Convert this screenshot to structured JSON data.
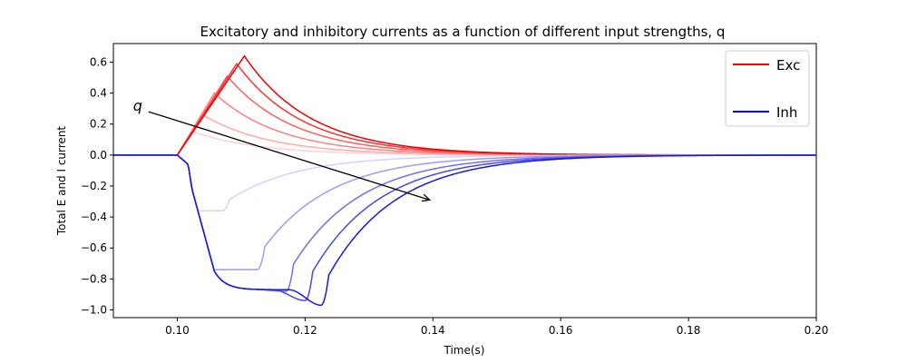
{
  "chart_data": {
    "type": "line",
    "title": "Excitatory and inhibitory currents as a function of different input strengths, q",
    "xlabel": "Time(s)",
    "ylabel": "Total E and I current",
    "xlim": [
      0.09,
      0.2
    ],
    "ylim": [
      -1.05,
      0.72
    ],
    "xticks": [
      0.1,
      0.12,
      0.14,
      0.16,
      0.18,
      0.2
    ],
    "xtick_labels": [
      "0.10",
      "0.12",
      "0.14",
      "0.16",
      "0.18",
      "0.20"
    ],
    "yticks": [
      0.6,
      0.4,
      0.2,
      0.0,
      -0.2,
      -0.4,
      -0.6,
      -0.8,
      -1.0
    ],
    "ytick_labels": [
      "0.6",
      "0.4",
      "0.2",
      "0.0",
      "−0.2",
      "−0.4",
      "−0.6",
      "−0.8",
      "−1.0"
    ],
    "grid": false,
    "legend_position": "top-right",
    "legend": [
      {
        "label": "Exc",
        "color": "#ff0000"
      },
      {
        "label": "Inh",
        "color": "#0000dd"
      }
    ],
    "annotation": {
      "text": "q",
      "arrow_from": [
        0.0955,
        0.28
      ],
      "arrow_to": [
        0.1395,
        -0.29
      ]
    },
    "exc_series": [
      {
        "color": "#ffd2d2",
        "peak_x": 0.1025,
        "peak_y": 0.15
      },
      {
        "color": "#ffaaaa",
        "peak_x": 0.104,
        "peak_y": 0.26
      },
      {
        "color": "#ff8080",
        "peak_x": 0.1058,
        "peak_y": 0.4
      },
      {
        "color": "#ff5e5e",
        "peak_x": 0.1078,
        "peak_y": 0.51
      },
      {
        "color": "#ff3030",
        "peak_x": 0.1093,
        "peak_y": 0.59
      },
      {
        "color": "#ee0000",
        "peak_x": 0.1105,
        "peak_y": 0.64
      }
    ],
    "inh_series": [
      {
        "color": "#d2d2ff",
        "min_x": 0.107,
        "min_y": -0.36
      },
      {
        "color": "#9c9cf4",
        "min_x": 0.1125,
        "min_y": -0.74
      },
      {
        "color": "#7070ec",
        "min_x": 0.117,
        "min_y": -0.88
      },
      {
        "color": "#4848e6",
        "min_x": 0.12,
        "min_y": -0.94
      },
      {
        "color": "#1818e0",
        "min_x": 0.1225,
        "min_y": -0.97
      }
    ]
  }
}
